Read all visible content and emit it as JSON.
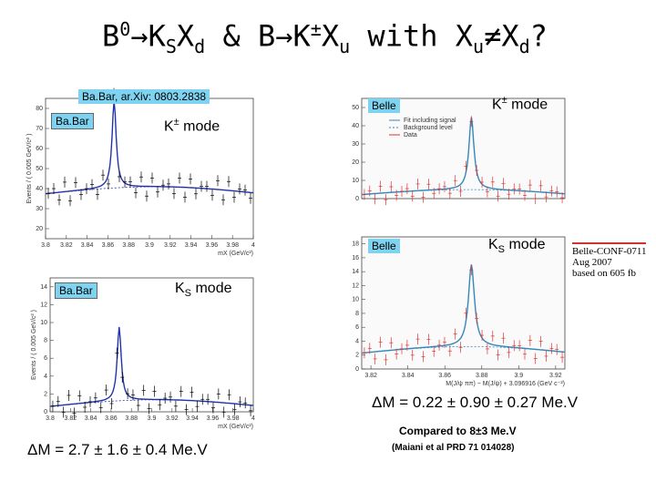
{
  "title": {
    "b": "B",
    "zero": "0",
    "arrow1": "→K",
    "s": "S",
    "x1": "X",
    "d": "d",
    "mid": " & B→K",
    "pm": "±",
    "x2": "X",
    "u": "u",
    "with": " with X",
    "u2": "u",
    "neq": "≠X",
    "d2": "d",
    "q": "?"
  },
  "citation": "Ba.Bar, ar.Xiv: 0803.2838",
  "plots": [
    {
      "experiment": "Ba.Bar",
      "mode": {
        "k": "K",
        "sup": "±",
        "rest": " mode"
      },
      "ylabel": "Events / ( 0.005 GeV/c² )",
      "xlabel": "mX (GeV/c²)",
      "xlim": [
        3.8,
        4
      ],
      "xticks": [
        3.8,
        3.82,
        3.84,
        3.86,
        3.88,
        3.9,
        3.92,
        3.94,
        3.96,
        3.98,
        4
      ],
      "ylim": [
        15,
        85
      ],
      "yticks": [
        20,
        30,
        40,
        50,
        60,
        70,
        80
      ]
    },
    {
      "experiment": "Ba.Bar",
      "mode": {
        "k": "K",
        "sub": "S",
        "rest": " mode"
      },
      "ylabel": "Events / ( 0.005 GeV/c² )",
      "xlabel": "mX (GeV/c²)",
      "xlim": [
        3.8,
        4
      ],
      "xticks": [
        3.8,
        3.82,
        3.84,
        3.86,
        3.88,
        3.9,
        3.92,
        3.94,
        3.96,
        3.98,
        4
      ],
      "ylim": [
        0,
        15
      ],
      "yticks": [
        0,
        2,
        4,
        6,
        8,
        10,
        12,
        14
      ]
    },
    {
      "experiment": "Belle",
      "mode": {
        "k": "K",
        "sup": "±",
        "rest": " mode"
      },
      "legend": [
        "Fit including signal",
        "Background level",
        "Data"
      ],
      "ylim": [
        0,
        55
      ],
      "yticks": [
        0,
        10,
        20,
        30,
        40,
        50
      ]
    },
    {
      "experiment": "Belle",
      "mode": {
        "k": "K",
        "sub": "S",
        "rest": " mode"
      },
      "xlabel": "M(J/ψ ππ) − M(J/ψ) + 3.096916 (GeV c⁻²)",
      "xlim": [
        3.815,
        3.925
      ],
      "xticks": [
        3.82,
        3.84,
        3.86,
        3.88,
        3.9,
        3.92
      ],
      "ylim": [
        0,
        19
      ],
      "yticks": [
        0,
        2,
        4,
        6,
        8,
        10,
        12,
        14,
        16,
        18
      ]
    }
  ],
  "belle_note": [
    "Belle-CONF-0711",
    "Aug 2007",
    "based on 605 fb"
  ],
  "belle_result": "ΔM = 0.22 ± 0.90 ± 0.27  Me.V",
  "compared": "Compared to  8±3 Me.V",
  "reference": "(Maiani et al PRD 71 014028)",
  "babar_result": "ΔM = 2.7 ± 1.6 ± 0.4  Me.V"
}
